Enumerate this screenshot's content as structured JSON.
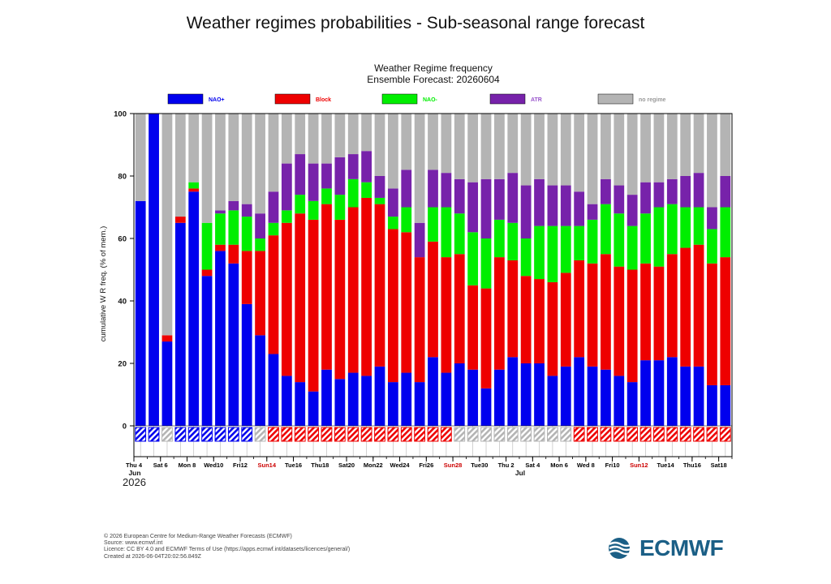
{
  "page": {
    "title": "Weather regimes probabilities - Sub-seasonal range forecast"
  },
  "footer": {
    "lines": [
      "© 2026 European Centre for Medium-Range Weather Forecasts (ECMWF)",
      "Source: www.ecmwf.int",
      "Licence: CC BY 4.0 and ECMWF Terms of Use (https://apps.ecmwf.int/datasets/licences/general/)",
      "Created at 2026-06-04T20:02:56.849Z"
    ],
    "logo_text": "ECMWF"
  },
  "chart_data": {
    "type": "bar",
    "stacked": true,
    "title": "Weather Regime frequency",
    "subtitle": "Ensemble Forecast: 20260604",
    "ylabel": "cumulative W R freq. (% of mem.)",
    "xlabel": "",
    "ylim": [
      0,
      100
    ],
    "yticks": [
      0,
      20,
      40,
      60,
      80,
      100
    ],
    "grid": "vertical",
    "legend_position": "top",
    "year_label": "2026",
    "month_labels": [
      {
        "index": 0,
        "label": "Jun"
      },
      {
        "index": 29,
        "label": "Jul"
      }
    ],
    "x_ticks": [
      {
        "index": 0,
        "label": "Thu 4",
        "color": "#000000"
      },
      {
        "index": 2,
        "label": "Sat 6",
        "color": "#000000"
      },
      {
        "index": 4,
        "label": "Mon 8",
        "color": "#000000"
      },
      {
        "index": 6,
        "label": "Wed10",
        "color": "#000000"
      },
      {
        "index": 8,
        "label": "Fri12",
        "color": "#000000"
      },
      {
        "index": 10,
        "label": "Sun14",
        "color": "#cc0000"
      },
      {
        "index": 12,
        "label": "Tue16",
        "color": "#000000"
      },
      {
        "index": 14,
        "label": "Thu18",
        "color": "#000000"
      },
      {
        "index": 16,
        "label": "Sat20",
        "color": "#000000"
      },
      {
        "index": 18,
        "label": "Mon22",
        "color": "#000000"
      },
      {
        "index": 20,
        "label": "Wed24",
        "color": "#000000"
      },
      {
        "index": 22,
        "label": "Fri26",
        "color": "#000000"
      },
      {
        "index": 24,
        "label": "Sun28",
        "color": "#cc0000"
      },
      {
        "index": 26,
        "label": "Tue30",
        "color": "#000000"
      },
      {
        "index": 28,
        "label": "Thu 2",
        "color": "#000000"
      },
      {
        "index": 30,
        "label": "Sat 4",
        "color": "#000000"
      },
      {
        "index": 32,
        "label": "Mon 6",
        "color": "#000000"
      },
      {
        "index": 34,
        "label": "Wed 8",
        "color": "#000000"
      },
      {
        "index": 36,
        "label": "Fri10",
        "color": "#000000"
      },
      {
        "index": 38,
        "label": "Sun12",
        "color": "#cc0000"
      },
      {
        "index": 40,
        "label": "Tue14",
        "color": "#000000"
      },
      {
        "index": 42,
        "label": "Thu16",
        "color": "#000000"
      },
      {
        "index": 44,
        "label": "Sat18",
        "color": "#000000"
      }
    ],
    "series": [
      {
        "name": "NAO+",
        "color": "#0000ee",
        "label_color": "#0000ee",
        "values": [
          72,
          100,
          27,
          65,
          75,
          48,
          56,
          52,
          39,
          29,
          23,
          16,
          14,
          11,
          18,
          15,
          17,
          16,
          19,
          14,
          17,
          14,
          22,
          17,
          20,
          18,
          12,
          18,
          22,
          20,
          20,
          16,
          19,
          22,
          19,
          18,
          16,
          14,
          21,
          21,
          22,
          19,
          19,
          13,
          13
        ]
      },
      {
        "name": "Block",
        "color": "#ee0000",
        "label_color": "#ee0000",
        "values": [
          0,
          0,
          2,
          2,
          1,
          2,
          2,
          6,
          17,
          27,
          38,
          49,
          54,
          55,
          53,
          51,
          53,
          57,
          52,
          49,
          45,
          40,
          37,
          37,
          35,
          27,
          32,
          36,
          31,
          28,
          27,
          30,
          30,
          31,
          33,
          37,
          35,
          36,
          31,
          30,
          33,
          38,
          39,
          39,
          41
        ]
      },
      {
        "name": "NAO-",
        "color": "#00ee00",
        "label_color": "#00ee00",
        "values": [
          0,
          0,
          0,
          0,
          2,
          15,
          10,
          11,
          11,
          4,
          4,
          4,
          6,
          6,
          5,
          8,
          9,
          5,
          2,
          4,
          8,
          0,
          11,
          16,
          13,
          17,
          16,
          12,
          12,
          12,
          17,
          18,
          15,
          11,
          14,
          16,
          17,
          14,
          16,
          19,
          16,
          13,
          12,
          11,
          16
        ]
      },
      {
        "name": "ATR",
        "color": "#7722aa",
        "label_color": "#9955cc",
        "values": [
          0,
          0,
          0,
          0,
          0,
          0,
          1,
          3,
          4,
          8,
          10,
          15,
          13,
          12,
          8,
          12,
          8,
          10,
          7,
          9,
          12,
          11,
          12,
          11,
          11,
          16,
          19,
          13,
          16,
          17,
          15,
          13,
          13,
          11,
          5,
          8,
          9,
          10,
          10,
          8,
          8,
          10,
          11,
          7,
          10
        ]
      },
      {
        "name": "no regime",
        "color": "#b4b4b4",
        "label_color": "#999999",
        "values": [
          28,
          0,
          71,
          33,
          22,
          35,
          31,
          28,
          29,
          32,
          25,
          16,
          13,
          16,
          16,
          14,
          13,
          12,
          20,
          24,
          18,
          35,
          18,
          19,
          21,
          22,
          21,
          21,
          19,
          23,
          21,
          23,
          23,
          25,
          29,
          21,
          23,
          26,
          22,
          22,
          21,
          20,
          19,
          30,
          20
        ]
      }
    ],
    "bottom_strip": {
      "regimes": [
        "NAO+",
        "NAO+",
        "no regime",
        "NAO+",
        "NAO+",
        "NAO+",
        "NAO+",
        "NAO+",
        "NAO+",
        "no regime",
        "Block",
        "Block",
        "Block",
        "Block",
        "Block",
        "Block",
        "Block",
        "Block",
        "Block",
        "Block",
        "Block",
        "Block",
        "Block",
        "Block",
        "no regime",
        "no regime",
        "no regime",
        "no regime",
        "no regime",
        "no regime",
        "no regime",
        "no regime",
        "no regime",
        "Block",
        "Block",
        "Block",
        "Block",
        "Block",
        "Block",
        "Block",
        "Block",
        "Block",
        "Block",
        "Block",
        "Block"
      ]
    }
  }
}
